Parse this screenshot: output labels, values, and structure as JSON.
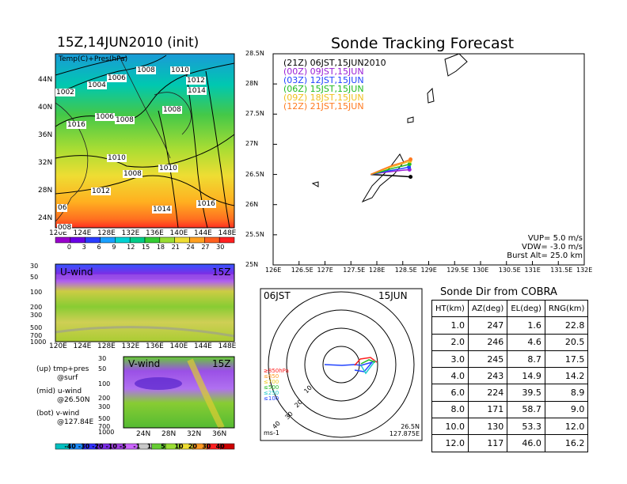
{
  "left_title": "15Z,14JUN2010 (init)",
  "right_title": "Sonde Tracking Forecast",
  "top_map": {
    "label": "Temp(C)+Pres(hPa)",
    "lat_ticks": [
      "44N",
      "40N",
      "36N",
      "32N",
      "28N",
      "24N"
    ],
    "lon_ticks": [
      "120E",
      "124E",
      "128E",
      "132E",
      "136E",
      "140E",
      "144E",
      "148E"
    ],
    "isobars": [
      "1002",
      "1004",
      "1006",
      "1008",
      "1010",
      "1012",
      "1014",
      "1016",
      "1006",
      "1008",
      "1008",
      "1010",
      "1008",
      "1010",
      "1012",
      "1014",
      "1016",
      "06",
      "008"
    ],
    "colorbar_ticks": [
      "0",
      "3",
      "6",
      "9",
      "12",
      "15",
      "18",
      "21",
      "24",
      "27",
      "30"
    ],
    "colorbar_colors": [
      "#9900cc",
      "#6a00e6",
      "#2a3cff",
      "#1aa0ff",
      "#00d2d2",
      "#00cc88",
      "#33cc33",
      "#99dd33",
      "#eedd33",
      "#ffa020",
      "#ff6020",
      "#ff2020"
    ]
  },
  "u_panel": {
    "label": "U-wind",
    "time": "15Z",
    "p_ticks": [
      "30",
      "50",
      "100",
      "200",
      "300",
      "500",
      "700",
      "1000"
    ],
    "lon_ticks": [
      "120E",
      "124E",
      "128E",
      "132E",
      "136E",
      "140E",
      "144E",
      "148E"
    ]
  },
  "v_panel": {
    "label": "V-wind",
    "time": "15Z",
    "p_ticks": [
      "30",
      "50",
      "100",
      "200",
      "300",
      "500",
      "700",
      "1000"
    ],
    "lat_ticks": [
      "24N",
      "28N",
      "32N",
      "36N"
    ]
  },
  "legend_notes": [
    {
      "a": "(up) tmp+pres",
      "b": "@surf"
    },
    {
      "a": "(mid) u-wind",
      "b": "@26.50N"
    },
    {
      "a": "(bot) v-wind",
      "b": "@127.84E"
    }
  ],
  "wind_colorbar": {
    "ticks": [
      "-40",
      "-30",
      "-20",
      "-10",
      "-5",
      "-1",
      "1",
      "5",
      "10",
      "20",
      "30",
      "40"
    ],
    "colors": [
      "#00bfbf",
      "#1a8cff",
      "#3333ff",
      "#7a2ee6",
      "#a040e0",
      "#cc66ff",
      "#c8c8c8",
      "#66cc33",
      "#99dd33",
      "#eedd33",
      "#ff9922",
      "#ff2222",
      "#cc0000"
    ]
  },
  "track_map": {
    "lat_ticks": [
      "28.5N",
      "28N",
      "27.5N",
      "27N",
      "26.5N",
      "26N",
      "25.5N",
      "25N"
    ],
    "lon_ticks": [
      "126E",
      "126.5E",
      "127E",
      "127.5E",
      "128E",
      "128.5E",
      "129E",
      "129.5E",
      "130E",
      "130.5E",
      "131E",
      "131.5E",
      "132E"
    ],
    "legend": [
      {
        "text": "(21Z)  06JST,15JUN2010",
        "color": "#000000"
      },
      {
        "text": "(00Z)  09JST,15JUN",
        "color": "#9a1fd6"
      },
      {
        "text": "(03Z)  12JST,15JUN",
        "color": "#2244ff"
      },
      {
        "text": "(06Z)  15JST,15JUN",
        "color": "#22bb22"
      },
      {
        "text": "(09Z)  18JST,15JUN",
        "color": "#f0c020"
      },
      {
        "text": "(12Z)  21JST,15JUN",
        "color": "#ff7a20"
      }
    ],
    "params": [
      "VUP=  5.0  m/s",
      "VDW=  -3.0  m/s",
      "Burst Alt=  25.0  km"
    ]
  },
  "polar": {
    "time_left": "06JST",
    "date_right": "15JUN",
    "ring_labels": [
      "10",
      "20",
      "30",
      "40"
    ],
    "unit": "ms-1",
    "loc_lat": "26.5N",
    "loc_lon": "127.875E",
    "height_key": [
      {
        "text": "≥850hPa",
        "color": "#ff2020"
      },
      {
        "text": "≤850",
        "color": "#ff9922"
      },
      {
        "text": "≤700",
        "color": "#eecc22"
      },
      {
        "text": "≤500",
        "color": "#22bb22"
      },
      {
        "text": "≤250",
        "color": "#22cccc"
      },
      {
        "text": "≤100",
        "color": "#2244ff"
      }
    ]
  },
  "sonde_dir": {
    "title": "Sonde Dir from COBRA",
    "headers": [
      "HT(km)",
      "AZ(deg)",
      "EL(deg)",
      "RNG(km)"
    ],
    "rows": [
      [
        "1.0",
        "247",
        "1.6",
        "22.8"
      ],
      [
        "2.0",
        "246",
        "4.6",
        "20.5"
      ],
      [
        "3.0",
        "245",
        "8.7",
        "17.5"
      ],
      [
        "4.0",
        "243",
        "14.9",
        "14.2"
      ],
      [
        "6.0",
        "224",
        "39.5",
        "8.9"
      ],
      [
        "8.0",
        "171",
        "58.7",
        "9.0"
      ],
      [
        "10.0",
        "130",
        "53.3",
        "12.0"
      ],
      [
        "12.0",
        "117",
        "46.0",
        "16.2"
      ]
    ]
  },
  "chart_data": [
    {
      "type": "heatmap",
      "title": "15Z,14JUN2010 (init)",
      "subtitle": "Temp(C)+Pres(hPa)",
      "x_ticks": [
        "120E",
        "124E",
        "128E",
        "132E",
        "136E",
        "140E",
        "144E",
        "148E"
      ],
      "y_ticks": [
        "24N",
        "28N",
        "32N",
        "36N",
        "40N",
        "44N"
      ],
      "colorbar": [
        "0",
        "3",
        "6",
        "9",
        "12",
        "15",
        "18",
        "21",
        "24",
        "27",
        "30"
      ],
      "isobar_labels": [
        "1002",
        "1004",
        "1006",
        "1008",
        "1010",
        "1012",
        "1014",
        "1016"
      ]
    },
    {
      "type": "line",
      "title": "Sonde Tracking Forecast",
      "xlim": [
        126,
        132
      ],
      "ylim": [
        25,
        28.5
      ],
      "series": [
        {
          "name": "(21Z)  06JST,15JUN2010",
          "color": "#000000",
          "x": [
            127.88,
            128.1,
            128.3,
            128.5,
            128.65
          ],
          "y": [
            26.5,
            26.49,
            26.48,
            26.47,
            26.46
          ]
        },
        {
          "name": "(00Z)  09JST,15JUN",
          "color": "#9a1fd6",
          "x": [
            127.88,
            128.1,
            128.3,
            128.5,
            128.63
          ],
          "y": [
            26.5,
            26.53,
            26.55,
            26.57,
            26.58
          ]
        },
        {
          "name": "(03Z)  12JST,15JUN",
          "color": "#2244ff",
          "x": [
            127.88,
            128.1,
            128.3,
            128.5,
            128.62
          ],
          "y": [
            26.5,
            26.54,
            26.57,
            26.6,
            26.62
          ]
        },
        {
          "name": "(06Z)  15JST,15JUN",
          "color": "#22bb22",
          "x": [
            127.88,
            128.1,
            128.3,
            128.5,
            128.63
          ],
          "y": [
            26.5,
            26.55,
            26.6,
            26.64,
            26.67
          ]
        },
        {
          "name": "(09Z)  18JST,15JUN",
          "color": "#f0c020",
          "x": [
            127.88,
            128.1,
            128.3,
            128.5,
            128.64
          ],
          "y": [
            26.5,
            26.57,
            26.63,
            26.68,
            26.72
          ]
        },
        {
          "name": "(12Z)  21JST,15JUN",
          "color": "#ff7a20",
          "x": [
            127.88,
            128.1,
            128.3,
            128.5,
            128.65
          ],
          "y": [
            26.5,
            26.58,
            26.65,
            26.7,
            26.75
          ]
        }
      ]
    },
    {
      "type": "table",
      "title": "Sonde Dir from COBRA",
      "columns": [
        "HT(km)",
        "AZ(deg)",
        "EL(deg)",
        "RNG(km)"
      ],
      "rows": [
        [
          "1.0",
          "247",
          "1.6",
          "22.8"
        ],
        [
          "2.0",
          "246",
          "4.6",
          "20.5"
        ],
        [
          "3.0",
          "245",
          "8.7",
          "17.5"
        ],
        [
          "4.0",
          "243",
          "14.9",
          "14.2"
        ],
        [
          "6.0",
          "224",
          "39.5",
          "8.9"
        ],
        [
          "8.0",
          "171",
          "58.7",
          "9.0"
        ],
        [
          "10.0",
          "130",
          "53.3",
          "12.0"
        ],
        [
          "12.0",
          "117",
          "46.0",
          "16.2"
        ]
      ]
    }
  ]
}
